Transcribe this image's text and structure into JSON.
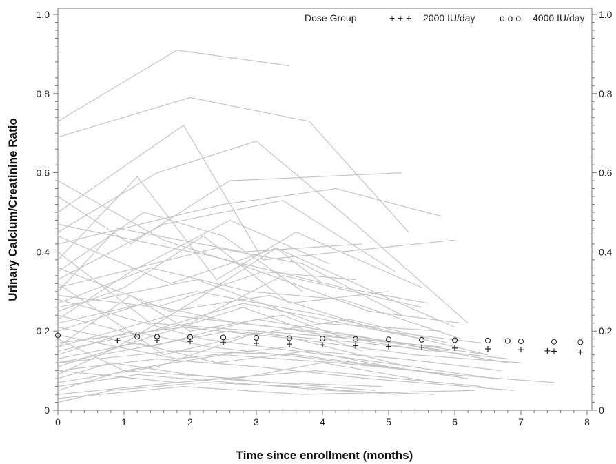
{
  "chart_data": {
    "type": "line",
    "title": "",
    "xlabel": "Time since enrollment (months)",
    "ylabel": "Urinary Calcium/Creatinine Ratio",
    "xlim": [
      0,
      8
    ],
    "ylim": [
      0,
      1.0
    ],
    "x_ticks": [
      "0",
      "1",
      "2",
      "3",
      "4",
      "5",
      "6",
      "7",
      "8"
    ],
    "y_ticks": [
      "0",
      "0.2",
      "0.4",
      "0.6",
      "0.8",
      "1.0"
    ],
    "y2_ticks": [
      "0",
      "0.2",
      "0.4",
      "0.6",
      "0.8",
      "1.0"
    ],
    "grid": false,
    "legend": {
      "title": "Dose Group",
      "placement": "top-right",
      "entries": [
        {
          "label": "2000 IU/day",
          "marker": "plus",
          "marker_text": "+ + +"
        },
        {
          "label": "4000 IU/day",
          "marker": "circle",
          "marker_text": "o o o"
        }
      ]
    },
    "colors": {
      "spaghetti": "#c4c4c4",
      "markers": "#222222",
      "axis": "#777777"
    },
    "subject_trajectories": [
      {
        "x": [
          0,
          1.8,
          3.5
        ],
        "y": [
          0.73,
          0.91,
          0.87
        ]
      },
      {
        "x": [
          0,
          2.0,
          3.8,
          5.3
        ],
        "y": [
          0.69,
          0.79,
          0.73,
          0.45
        ]
      },
      {
        "x": [
          0,
          1.1,
          2.6,
          5.2
        ],
        "y": [
          0.54,
          0.42,
          0.58,
          0.6
        ]
      },
      {
        "x": [
          0,
          1.9,
          3.1,
          6.0
        ],
        "y": [
          0.5,
          0.72,
          0.38,
          0.43
        ]
      },
      {
        "x": [
          0,
          1.5,
          3.0,
          4.5,
          6.2
        ],
        "y": [
          0.45,
          0.6,
          0.68,
          0.47,
          0.22
        ]
      },
      {
        "x": [
          0,
          2.5,
          4.2,
          5.8
        ],
        "y": [
          0.42,
          0.52,
          0.56,
          0.49
        ]
      },
      {
        "x": [
          0,
          1.2,
          2.4,
          3.6,
          5.5
        ],
        "y": [
          0.38,
          0.59,
          0.33,
          0.45,
          0.31
        ]
      },
      {
        "x": [
          0,
          1.6,
          3.4,
          5.1
        ],
        "y": [
          0.33,
          0.47,
          0.53,
          0.35
        ]
      },
      {
        "x": [
          0,
          0.9,
          2.8,
          4.6
        ],
        "y": [
          0.3,
          0.46,
          0.4,
          0.42
        ]
      },
      {
        "x": [
          0,
          1.4,
          2.9,
          4.3,
          6.1
        ],
        "y": [
          0.27,
          0.36,
          0.3,
          0.28,
          0.18
        ]
      },
      {
        "x": [
          0,
          1.0,
          2.2,
          3.5,
          5.0
        ],
        "y": [
          0.25,
          0.31,
          0.44,
          0.27,
          0.3
        ]
      },
      {
        "x": [
          0,
          2.1,
          4.0,
          6.5
        ],
        "y": [
          0.22,
          0.3,
          0.24,
          0.14
        ]
      },
      {
        "x": [
          0,
          1.3,
          2.7,
          4.4,
          6.8
        ],
        "y": [
          0.2,
          0.27,
          0.22,
          0.19,
          0.12
        ]
      },
      {
        "x": [
          0,
          1.7,
          3.3,
          5.6
        ],
        "y": [
          0.16,
          0.24,
          0.21,
          0.15
        ]
      },
      {
        "x": [
          0,
          1.1,
          2.3,
          3.9,
          5.4
        ],
        "y": [
          0.14,
          0.2,
          0.16,
          0.13,
          0.1
        ]
      },
      {
        "x": [
          0,
          1.8,
          3.6,
          5.9,
          7.5
        ],
        "y": [
          0.12,
          0.15,
          0.14,
          0.09,
          0.07
        ]
      },
      {
        "x": [
          0,
          1.5,
          3.0,
          4.7,
          6.9
        ],
        "y": [
          0.1,
          0.13,
          0.11,
          0.08,
          0.05
        ]
      },
      {
        "x": [
          0,
          0.8,
          2.0,
          3.2,
          4.9
        ],
        "y": [
          0.08,
          0.12,
          0.09,
          0.07,
          0.06
        ]
      },
      {
        "x": [
          0,
          1.2,
          2.6,
          4.1,
          5.7
        ],
        "y": [
          0.06,
          0.09,
          0.07,
          0.05,
          0.04
        ]
      },
      {
        "x": [
          0,
          2.4,
          4.8
        ],
        "y": [
          0.04,
          0.08,
          0.05
        ]
      },
      {
        "x": [
          0,
          1.9,
          3.7,
          6.3
        ],
        "y": [
          0.03,
          0.06,
          0.04,
          0.05
        ]
      },
      {
        "x": [
          0,
          1.0,
          2.5,
          4.2,
          6.0
        ],
        "y": [
          0.18,
          0.1,
          0.14,
          0.12,
          0.09
        ]
      },
      {
        "x": [
          0,
          1.6,
          3.1,
          5.3
        ],
        "y": [
          0.32,
          0.14,
          0.2,
          0.11
        ]
      },
      {
        "x": [
          0,
          2.2,
          4.5,
          6.6
        ],
        "y": [
          0.28,
          0.18,
          0.13,
          0.08
        ]
      },
      {
        "x": [
          0,
          1.4,
          3.8,
          5.8
        ],
        "y": [
          0.4,
          0.22,
          0.19,
          0.16
        ]
      },
      {
        "x": [
          0,
          1.7,
          3.2,
          4.9,
          6.4
        ],
        "y": [
          0.36,
          0.25,
          0.29,
          0.2,
          0.17
        ]
      },
      {
        "x": [
          0,
          1.3,
          2.8,
          4.6
        ],
        "y": [
          0.11,
          0.18,
          0.26,
          0.15
        ]
      },
      {
        "x": [
          0,
          2.0,
          3.4,
          5.5
        ],
        "y": [
          0.15,
          0.22,
          0.34,
          0.26
        ]
      },
      {
        "x": [
          0,
          0.9,
          2.1,
          3.3,
          4.0
        ],
        "y": [
          0.09,
          0.16,
          0.28,
          0.41,
          0.32
        ]
      },
      {
        "x": [
          0,
          1.5,
          2.9,
          4.4,
          5.9
        ],
        "y": [
          0.07,
          0.11,
          0.19,
          0.23,
          0.17
        ]
      },
      {
        "x": [
          0,
          1.2,
          2.4,
          3.8,
          5.2,
          6.7
        ],
        "y": [
          0.13,
          0.17,
          0.12,
          0.15,
          0.13,
          0.1
        ]
      },
      {
        "x": [
          0,
          1.8,
          3.5,
          5.0,
          6.2
        ],
        "y": [
          0.19,
          0.13,
          0.16,
          0.11,
          0.08
        ]
      },
      {
        "x": [
          0,
          1.1,
          2.6,
          4.1
        ],
        "y": [
          0.23,
          0.35,
          0.48,
          0.37
        ]
      },
      {
        "x": [
          0,
          2.3,
          4.3,
          5.6
        ],
        "y": [
          0.47,
          0.39,
          0.31,
          0.27
        ]
      },
      {
        "x": [
          0,
          1.6,
          2.9,
          4.7,
          6.1
        ],
        "y": [
          0.58,
          0.43,
          0.36,
          0.25,
          0.22
        ]
      },
      {
        "x": [
          0,
          1.0,
          2.7,
          4.0,
          5.7
        ],
        "y": [
          0.05,
          0.1,
          0.08,
          0.12,
          0.07
        ]
      },
      {
        "x": [
          0,
          1.9,
          3.6,
          5.4,
          7.0
        ],
        "y": [
          0.17,
          0.21,
          0.18,
          0.14,
          0.12
        ]
      },
      {
        "x": [
          0,
          1.4,
          3.0,
          4.8,
          6.5
        ],
        "y": [
          0.21,
          0.16,
          0.23,
          0.18,
          0.14
        ]
      },
      {
        "x": [
          0,
          2.1,
          3.9,
          5.8
        ],
        "y": [
          0.26,
          0.33,
          0.22,
          0.2
        ]
      },
      {
        "x": [
          0,
          1.3,
          2.5,
          3.7
        ],
        "y": [
          0.35,
          0.5,
          0.44,
          0.3
        ]
      },
      {
        "x": [
          0,
          1.7,
          3.3,
          4.9,
          6.0
        ],
        "y": [
          0.44,
          0.32,
          0.41,
          0.29,
          0.21
        ]
      },
      {
        "x": [
          0,
          0.8,
          2.2,
          3.6,
          5.1
        ],
        "y": [
          0.02,
          0.05,
          0.07,
          0.06,
          0.04
        ]
      },
      {
        "x": [
          0,
          2.6,
          4.6,
          6.8
        ],
        "y": [
          0.12,
          0.2,
          0.17,
          0.13
        ]
      },
      {
        "x": [
          0,
          1.5,
          3.1,
          4.5
        ],
        "y": [
          0.29,
          0.26,
          0.35,
          0.33
        ]
      },
      {
        "x": [
          0,
          1.1,
          2.0,
          3.4,
          4.2,
          5.9
        ],
        "y": [
          0.16,
          0.29,
          0.2,
          0.24,
          0.19,
          0.15
        ]
      },
      {
        "x": [
          0,
          1.8,
          3.9,
          6.4
        ],
        "y": [
          0.1,
          0.07,
          0.1,
          0.06
        ]
      },
      {
        "x": [
          0,
          1.2,
          2.8,
          4.3,
          5.5
        ],
        "y": [
          0.24,
          0.19,
          0.27,
          0.22,
          0.18
        ]
      },
      {
        "x": [
          0,
          2.4,
          3.7,
          5.2
        ],
        "y": [
          0.31,
          0.41,
          0.37,
          0.24
        ]
      }
    ],
    "group_means": [
      {
        "name": "2000 IU/day",
        "marker": "plus",
        "x": [
          0.9,
          1.5,
          2.0,
          2.5,
          3.0,
          3.5,
          4.0,
          4.5,
          5.0,
          5.5,
          6.0,
          6.5,
          7.0,
          7.4,
          7.5,
          7.9
        ],
        "y": [
          0.176,
          0.176,
          0.174,
          0.171,
          0.169,
          0.167,
          0.165,
          0.163,
          0.161,
          0.159,
          0.157,
          0.155,
          0.153,
          0.15,
          0.149,
          0.147
        ]
      },
      {
        "name": "4000 IU/day",
        "marker": "circle",
        "x": [
          0,
          1.2,
          1.5,
          2.0,
          2.5,
          3.0,
          3.5,
          4.0,
          4.5,
          5.0,
          5.5,
          6.0,
          6.5,
          6.8,
          7.0,
          7.5,
          7.9
        ],
        "y": [
          0.189,
          0.186,
          0.186,
          0.185,
          0.184,
          0.183,
          0.182,
          0.181,
          0.18,
          0.179,
          0.178,
          0.177,
          0.176,
          0.175,
          0.174,
          0.173,
          0.172
        ]
      }
    ]
  }
}
